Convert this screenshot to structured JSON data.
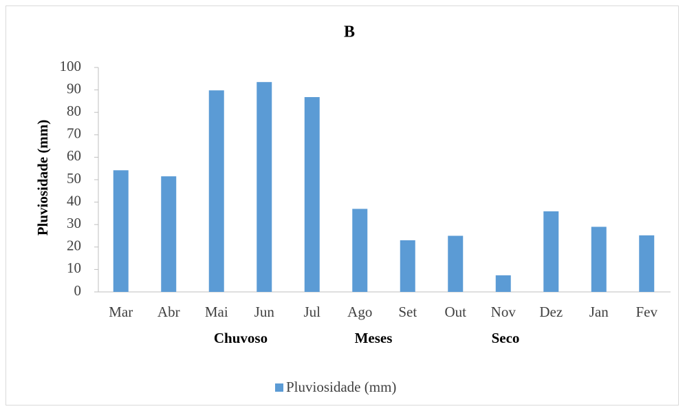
{
  "chart_data": {
    "type": "bar",
    "title": "B",
    "y_label": "Pluviosidade (mm)",
    "categories": [
      "Mar",
      "Abr",
      "Mai",
      "Jun",
      "Jul",
      "Ago",
      "Set",
      "Out",
      "Nov",
      "Dez",
      "Jan",
      "Fev"
    ],
    "series": [
      {
        "name": "Pluviosidade (mm)",
        "color": "#5b9bd5",
        "values": [
          54.2,
          51.5,
          89.8,
          93.5,
          86.8,
          37,
          23,
          25,
          7.4,
          35.9,
          29,
          25.2
        ]
      }
    ],
    "annotations": [
      "Chuvoso",
      "Meses",
      "Seco"
    ],
    "ylim": [
      0,
      100
    ],
    "yticks": [
      0,
      10,
      20,
      30,
      40,
      50,
      60,
      70,
      80,
      90,
      100
    ],
    "grid": false,
    "legend": "bottom"
  }
}
